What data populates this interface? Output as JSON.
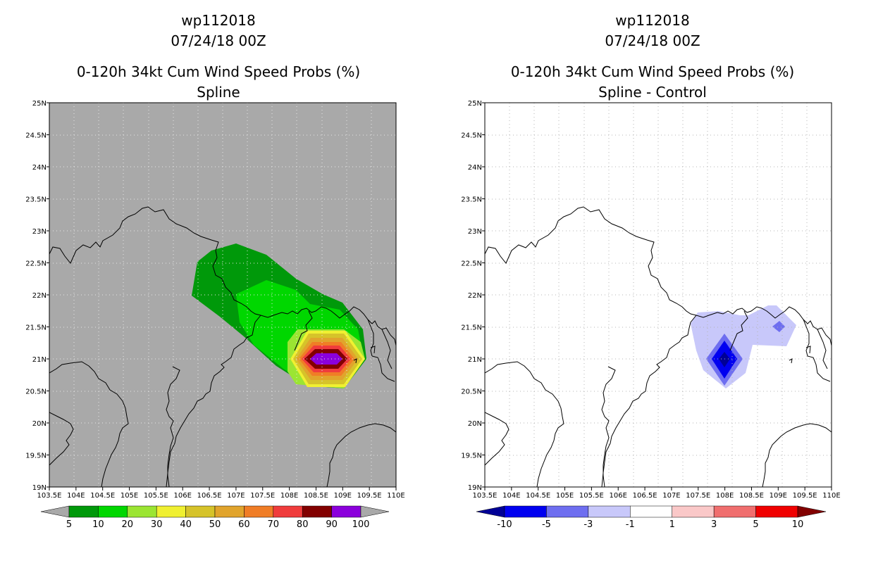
{
  "left_panel": {
    "storm_id": "wp112018",
    "datetime": "07/24/18 00Z",
    "product": "0-120h 34kt Cum Wind Speed Probs (%)",
    "subtitle": "Spline",
    "background": "#a9a9a9",
    "legend": {
      "colors": [
        "#00990a",
        "#00d700",
        "#9be532",
        "#f0f031",
        "#d6c32a",
        "#e1a42c",
        "#f07d26",
        "#f03c3c",
        "#820000",
        "#8b00dc"
      ],
      "labels": [
        "5",
        "10",
        "20",
        "30",
        "40",
        "50",
        "60",
        "70",
        "80",
        "90",
        "100"
      ]
    }
  },
  "right_panel": {
    "storm_id": "wp112018",
    "datetime": "07/24/18 00Z",
    "product": "0-120h 34kt Cum Wind Speed Probs (%)",
    "subtitle": "Spline - Control",
    "background": "#ffffff",
    "legend": {
      "colors": [
        "#000096",
        "#0000f0",
        "#6e6ef0",
        "#c8c8fa",
        "#ffffff",
        "#fac8c8",
        "#f06e6e",
        "#f00000",
        "#820000"
      ],
      "labels": [
        "-10",
        "-5",
        "-3",
        "-1",
        "1",
        "3",
        "5",
        "10"
      ]
    }
  },
  "axes": {
    "lon_labels": [
      "103.5E",
      "104E",
      "104.5E",
      "105E",
      "105.5E",
      "106E",
      "106.5E",
      "107E",
      "107.5E",
      "108E",
      "108.5E",
      "109E",
      "109.5E",
      "110E"
    ],
    "lat_labels": [
      "25N",
      "24.5N",
      "24N",
      "23.5N",
      "23N",
      "22.5N",
      "22N",
      "21.5N",
      "21N",
      "20.5N",
      "20N",
      "19.5N",
      "19N"
    ]
  }
}
